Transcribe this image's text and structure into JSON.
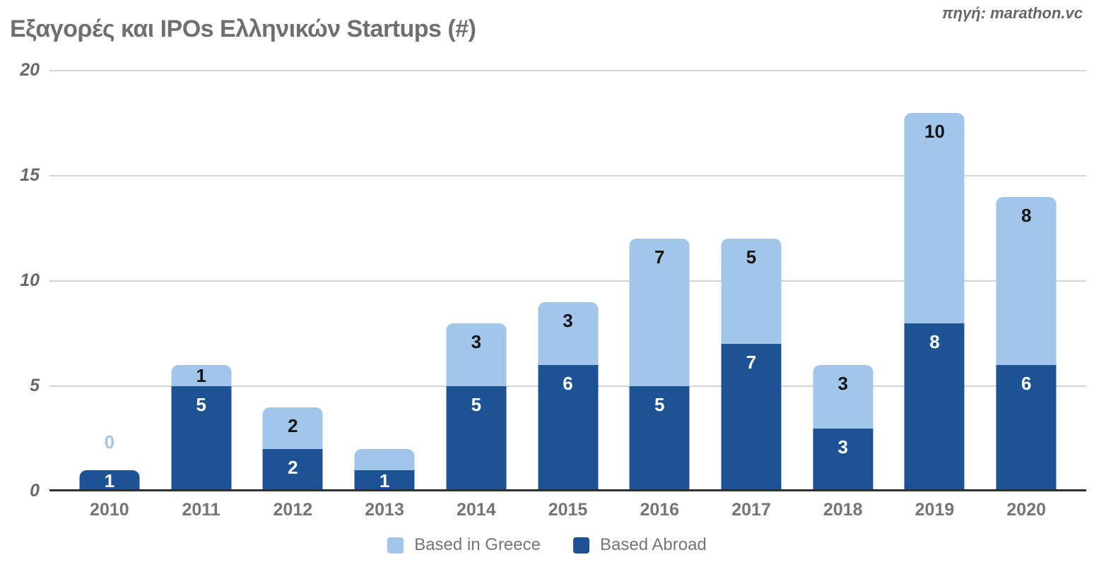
{
  "title": "Εξαγορές και IPOs Ελληνικών Startups (#)",
  "source": "πηγή: marathon.vc",
  "colors": {
    "based_in_greece": "#a2c6e9",
    "based_abroad": "#1d5394",
    "label_on_light": "#151515",
    "label_on_dark": "#ffffff",
    "zero_label": "#a2c6e9",
    "grid_line": "#d4d4d4",
    "baseline": "#2e2e2e",
    "title_gray": "#6f6f6f",
    "axis_gray": "#696969",
    "x_label_gray": "#757575",
    "legend_gray": "#757575"
  },
  "legend": [
    {
      "label": "Based in Greece",
      "color_key": "based_in_greece"
    },
    {
      "label": "Based Abroad",
      "color_key": "based_abroad"
    }
  ],
  "chart_data": {
    "type": "bar",
    "stacked": true,
    "title": "Εξαγορές και IPOs Ελληνικών Startups (#)",
    "categories": [
      "2010",
      "2011",
      "2012",
      "2013",
      "2014",
      "2015",
      "2016",
      "2017",
      "2018",
      "2019",
      "2020"
    ],
    "series": [
      {
        "name": "Based in Greece",
        "position": "top",
        "color_key": "based_in_greece",
        "values": [
          0,
          1,
          2,
          1,
          3,
          3,
          7,
          5,
          3,
          10,
          8
        ],
        "labels_shown": [
          true,
          true,
          true,
          false,
          true,
          true,
          true,
          true,
          true,
          true,
          true
        ]
      },
      {
        "name": "Based Abroad",
        "position": "bottom",
        "color_key": "based_abroad",
        "values": [
          1,
          5,
          2,
          1,
          5,
          6,
          5,
          7,
          3,
          8,
          6
        ],
        "labels_shown": [
          true,
          true,
          true,
          true,
          true,
          true,
          true,
          true,
          true,
          true,
          true
        ]
      }
    ],
    "totals": [
      1,
      6,
      4,
      2,
      8,
      9,
      12,
      12,
      6,
      18,
      14
    ],
    "ylim": [
      0,
      20
    ],
    "yticks": [
      0,
      5,
      10,
      15,
      20
    ],
    "grid": true,
    "legend_position": "bottom",
    "xlabel": "",
    "ylabel": ""
  }
}
